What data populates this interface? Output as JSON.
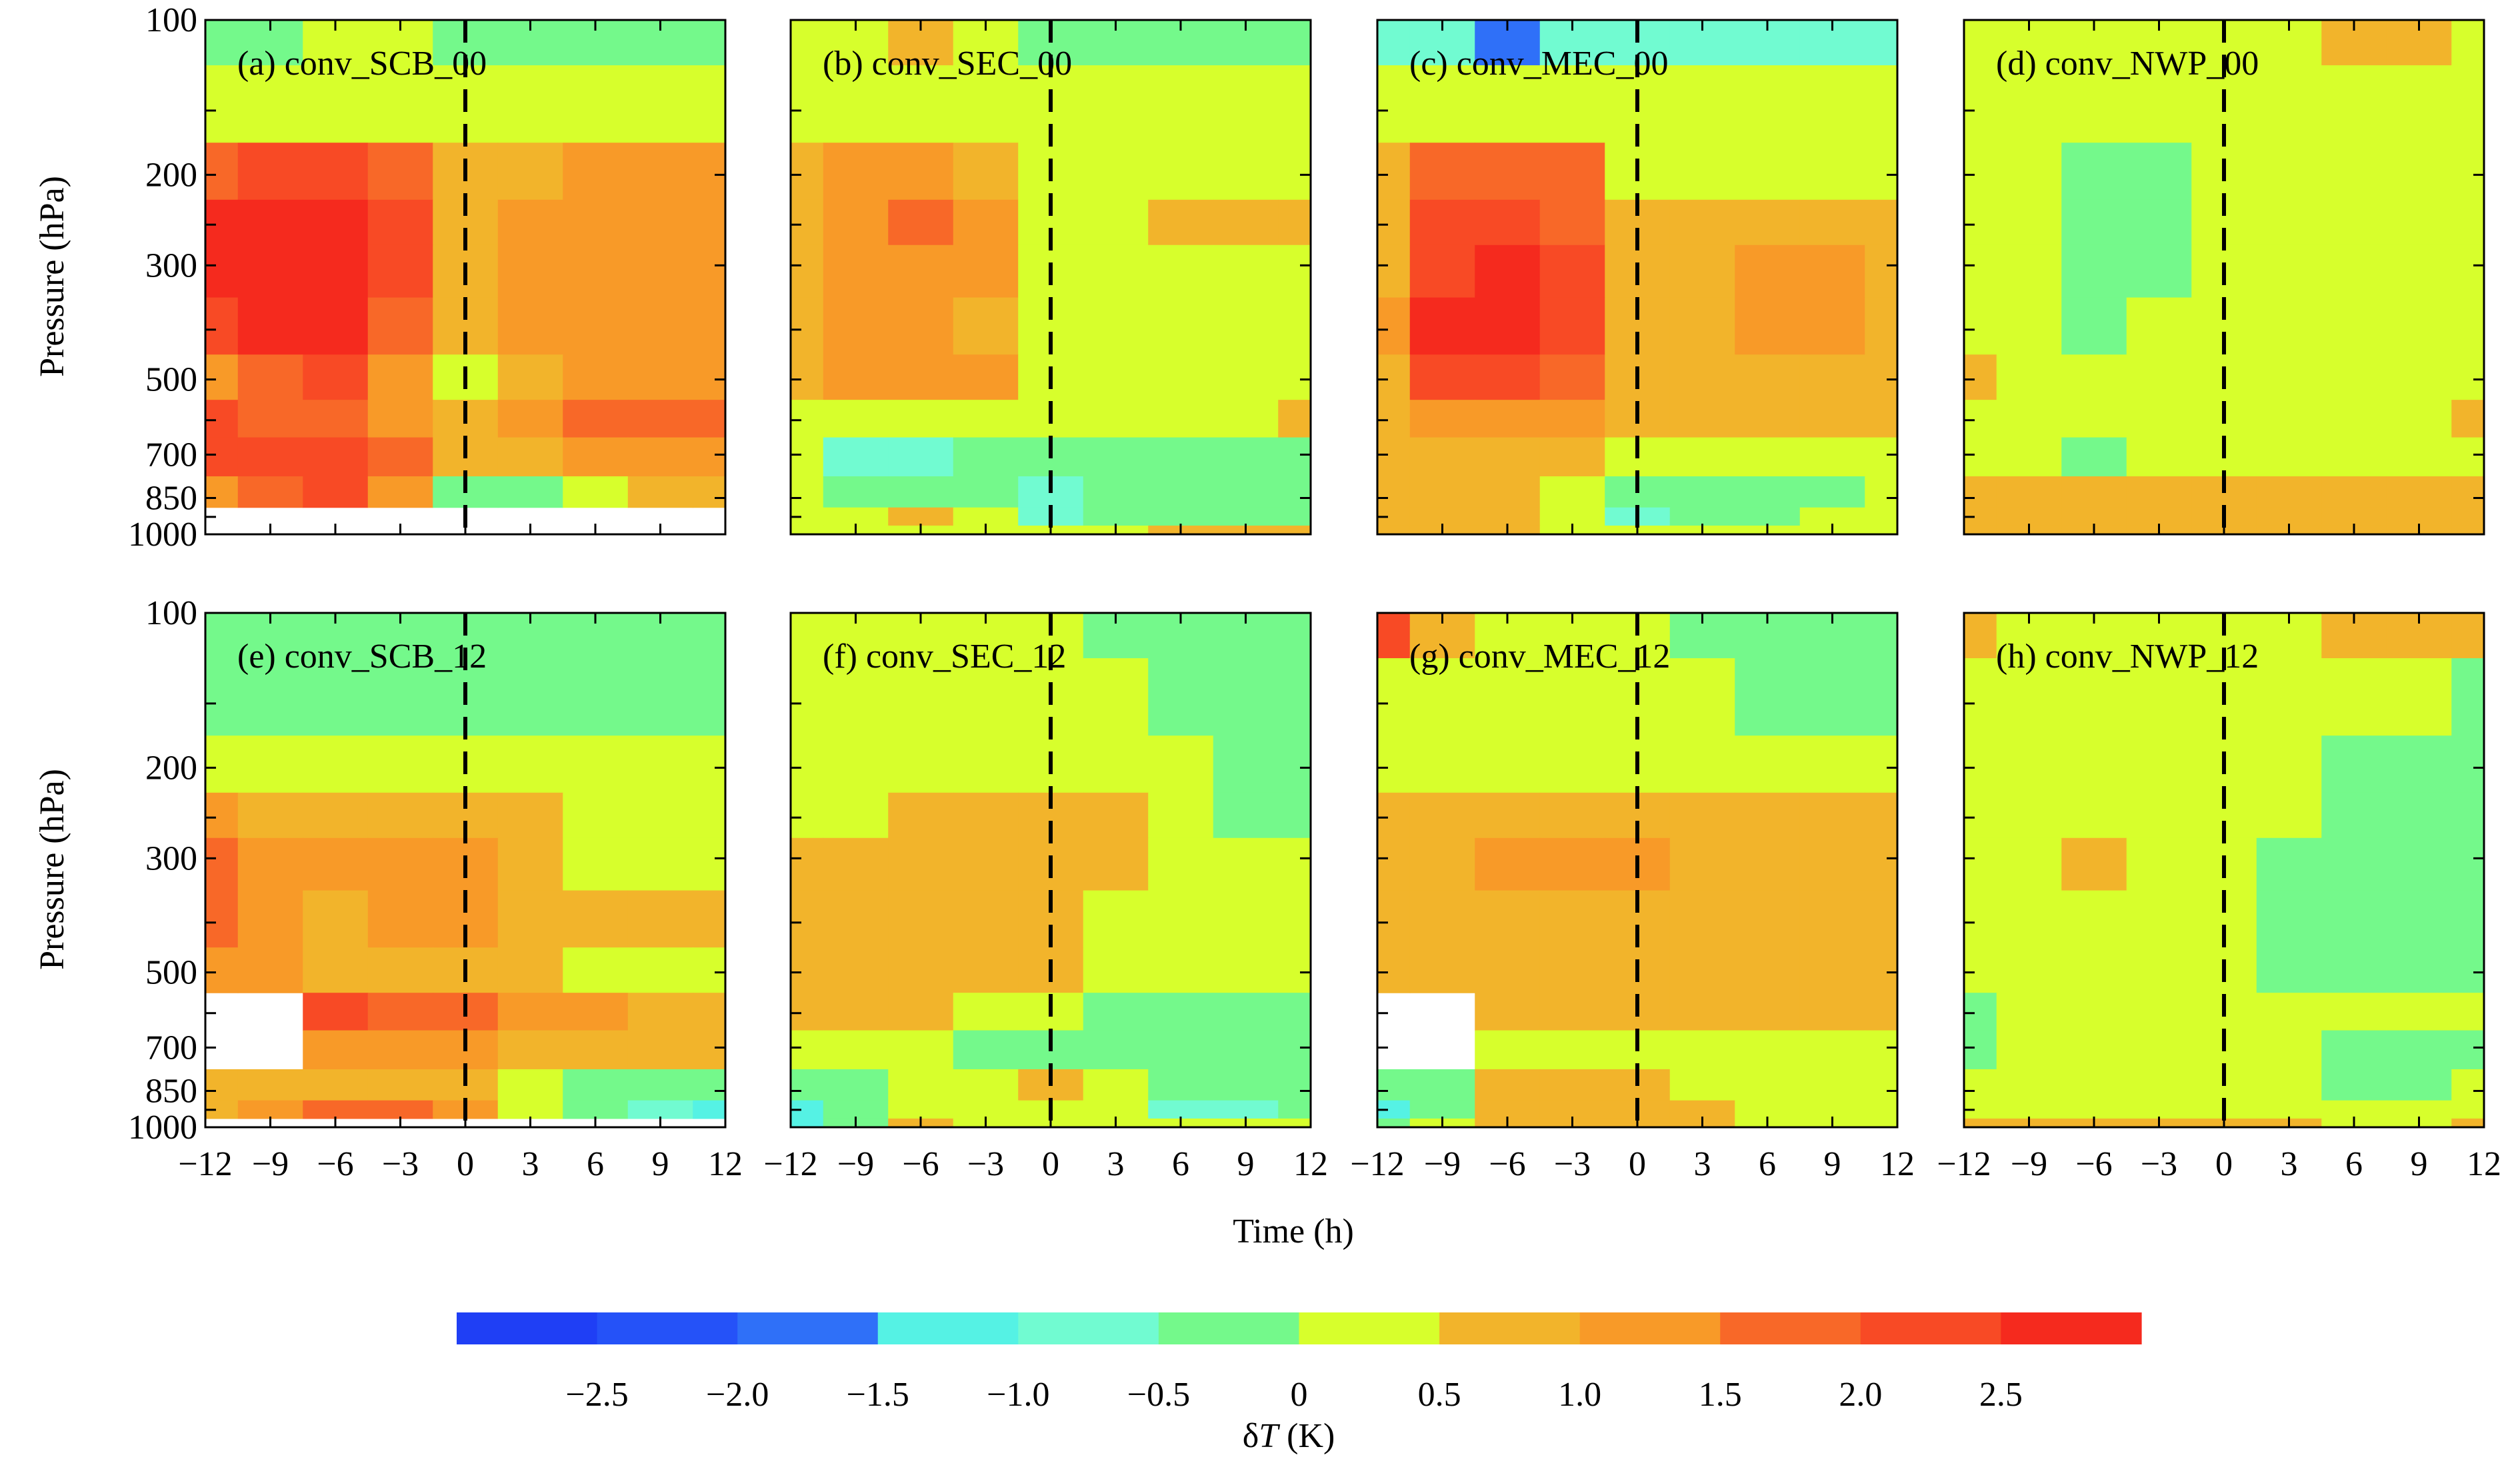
{
  "chart_data": {
    "type": "heatmap",
    "description_free": true,
    "variable_label": "δT (K)",
    "variable_symbol": "δ",
    "variable_italic": "T",
    "variable_unit": " (K)",
    "xlabel": "Time (h)",
    "ylabel": "Pressure (hPa)",
    "x_ticks": [
      -12,
      -9,
      -6,
      -3,
      0,
      3,
      6,
      9,
      12
    ],
    "x_tick_labels": [
      "−12",
      "−9",
      "−6",
      "−3",
      "0",
      "3",
      "6",
      "9",
      "12"
    ],
    "y_label_levels": [
      100,
      200,
      300,
      500,
      700,
      850,
      1000
    ],
    "y_minor_levels": [
      150,
      250,
      400,
      600,
      925
    ],
    "xlim": [
      -12,
      12
    ],
    "ylim_hpa": [
      100,
      1000
    ],
    "vertical_reference_line_x": 0,
    "colorbar": {
      "levels": [
        -3.0,
        -2.5,
        -2.0,
        -1.5,
        -1.0,
        -0.5,
        0,
        0.5,
        1.0,
        1.5,
        2.0,
        2.5,
        3.0
      ],
      "bin_colors": [
        "#1f3ff5",
        "#2552f8",
        "#2f70f8",
        "#55f2e4",
        "#71fbd1",
        "#74f98b",
        "#d7ff2c",
        "#f2b42b",
        "#f89a28",
        "#f86828",
        "#f84a25",
        "#f52a1e"
      ],
      "tick_labels": [
        "−2.5",
        "−2.0",
        "−1.5",
        "−1.0",
        "−0.5",
        "0",
        "0.5",
        "1.0",
        "1.5",
        "2.0",
        "2.5"
      ],
      "tick_values": [
        -2.5,
        -2.0,
        -1.5,
        -1.0,
        -0.5,
        0,
        0.5,
        1.0,
        1.5,
        2.0,
        2.5
      ]
    },
    "grid_times": [
      -12,
      -9,
      -6,
      -3,
      0,
      3,
      6,
      9,
      12
    ],
    "grid_levels": [
      100,
      150,
      200,
      250,
      300,
      400,
      500,
      600,
      700,
      850,
      925,
      1000
    ],
    "panels": [
      {
        "label": "(a) conv_SCB_00",
        "values": [
          [
            -0.4,
            -0.4,
            0.3,
            0.3,
            -0.3,
            -0.4,
            -0.4,
            -0.4,
            -0.4
          ],
          [
            0.3,
            0.3,
            0.3,
            0.3,
            0.3,
            0.3,
            0.3,
            0.3,
            0.3
          ],
          [
            1.6,
            2.2,
            2.4,
            1.6,
            0.6,
            0.9,
            1.0,
            1.0,
            1.0
          ],
          [
            2.5,
            2.6,
            2.6,
            2.2,
            0.8,
            1.1,
            1.2,
            1.2,
            1.2
          ],
          [
            2.5,
            2.7,
            2.7,
            2.2,
            0.8,
            1.1,
            1.3,
            1.3,
            1.3
          ],
          [
            2.0,
            2.5,
            2.6,
            1.8,
            0.7,
            1.0,
            1.3,
            1.3,
            1.2
          ],
          [
            1.3,
            1.6,
            2.0,
            1.2,
            0.3,
            0.8,
            1.1,
            1.2,
            1.1
          ],
          [
            2.0,
            1.5,
            1.5,
            1.1,
            0.6,
            1.2,
            1.6,
            1.7,
            1.7
          ],
          [
            2.0,
            2.1,
            2.2,
            1.5,
            0.5,
            0.9,
            1.1,
            1.1,
            1.1
          ],
          [
            1.2,
            1.8,
            2.0,
            1.0,
            -0.4,
            -0.3,
            0.2,
            0.6,
            0.8
          ],
          [
            null,
            null,
            null,
            null,
            null,
            null,
            null,
            null,
            null
          ],
          [
            null,
            null,
            null,
            null,
            null,
            null,
            null,
            null,
            null
          ]
        ]
      },
      {
        "label": "(b) conv_SEC_00",
        "values": [
          [
            0.3,
            0.3,
            0.6,
            0.3,
            -0.3,
            -0.3,
            -0.3,
            -0.3,
            -0.4
          ],
          [
            0.3,
            0.3,
            0.3,
            0.3,
            0.3,
            0.3,
            0.3,
            0.3,
            0.3
          ],
          [
            0.6,
            1.2,
            1.3,
            0.9,
            0.3,
            0.3,
            0.3,
            0.3,
            0.3
          ],
          [
            0.8,
            1.4,
            1.6,
            1.1,
            0.3,
            0.3,
            0.6,
            0.7,
            0.6
          ],
          [
            0.7,
            1.3,
            1.4,
            1.0,
            0.3,
            0.3,
            0.4,
            0.4,
            0.4
          ],
          [
            0.7,
            1.1,
            1.2,
            0.9,
            0.3,
            0.3,
            0.3,
            0.3,
            0.3
          ],
          [
            0.7,
            1.2,
            1.4,
            1.0,
            0.4,
            0.4,
            0.4,
            0.4,
            0.4
          ],
          [
            0.3,
            0.3,
            0.3,
            0.3,
            0.3,
            0.3,
            0.3,
            0.3,
            0.6
          ],
          [
            0.3,
            -0.6,
            -0.8,
            -0.4,
            -0.3,
            -0.3,
            -0.3,
            -0.3,
            -0.3
          ],
          [
            0.3,
            -0.2,
            -0.3,
            -0.4,
            -0.7,
            -0.4,
            -0.3,
            -0.3,
            -0.3
          ],
          [
            0.3,
            0.3,
            0.5,
            0.3,
            -0.8,
            -0.3,
            -0.3,
            -0.3,
            -0.3
          ],
          [
            0.3,
            0.3,
            0.3,
            0.3,
            0.3,
            0.3,
            0.6,
            0.6,
            0.6
          ]
        ]
      },
      {
        "label": "(c) conv_MEC_00",
        "values": [
          [
            -0.6,
            -0.7,
            -2.0,
            -0.7,
            -0.6,
            -0.6,
            -0.6,
            -0.6,
            -0.6
          ],
          [
            0.3,
            0.3,
            0.3,
            0.3,
            0.3,
            0.3,
            0.3,
            0.3,
            0.3
          ],
          [
            0.6,
            1.5,
            1.7,
            1.5,
            0.3,
            0.3,
            0.3,
            0.3,
            0.3
          ],
          [
            0.8,
            2.0,
            2.3,
            1.9,
            0.7,
            0.7,
            0.9,
            0.9,
            0.8
          ],
          [
            0.9,
            2.4,
            2.6,
            2.2,
            0.8,
            0.9,
            1.1,
            1.1,
            0.9
          ],
          [
            1.0,
            2.5,
            2.7,
            2.3,
            0.8,
            0.9,
            1.1,
            1.0,
            0.9
          ],
          [
            0.9,
            2.2,
            2.4,
            1.9,
            0.7,
            0.8,
            0.8,
            0.8,
            0.8
          ],
          [
            0.8,
            1.1,
            1.2,
            1.0,
            0.8,
            0.8,
            0.8,
            0.8,
            0.8
          ],
          [
            0.8,
            0.8,
            0.8,
            0.7,
            0.3,
            0.3,
            0.3,
            0.3,
            0.3
          ],
          [
            0.7,
            0.7,
            0.7,
            0.3,
            -0.3,
            -0.3,
            -0.3,
            -0.3,
            0.3
          ],
          [
            0.7,
            0.7,
            0.6,
            0.3,
            -0.6,
            -0.4,
            -0.3,
            0.3,
            0.3
          ],
          [
            0.6,
            0.6,
            0.6,
            0.3,
            0.3,
            0.3,
            0.3,
            0.3,
            0.3
          ]
        ]
      },
      {
        "label": "(d) conv_NWP_00",
        "values": [
          [
            0.3,
            0.3,
            0.3,
            0.3,
            0.3,
            0.3,
            0.6,
            0.6,
            0.3
          ],
          [
            0.3,
            0.3,
            0.3,
            0.3,
            0.3,
            0.3,
            0.3,
            0.3,
            0.3
          ],
          [
            0.3,
            0.3,
            -0.3,
            -0.3,
            0.3,
            0.3,
            0.3,
            0.3,
            0.3
          ],
          [
            0.3,
            0.3,
            -0.4,
            -0.3,
            0.3,
            0.3,
            0.3,
            0.3,
            0.3
          ],
          [
            0.3,
            0.3,
            -0.4,
            -0.3,
            0.3,
            0.3,
            0.3,
            0.3,
            0.3
          ],
          [
            0.3,
            0.3,
            -0.3,
            0.3,
            0.3,
            0.3,
            0.3,
            0.3,
            0.3
          ],
          [
            0.6,
            0.3,
            0.3,
            0.3,
            0.3,
            0.3,
            0.3,
            0.3,
            0.3
          ],
          [
            0.3,
            0.3,
            0.3,
            0.3,
            0.3,
            0.3,
            0.3,
            0.3,
            0.6
          ],
          [
            0.3,
            0.3,
            -0.3,
            0.3,
            0.3,
            0.3,
            0.3,
            0.3,
            0.3
          ],
          [
            0.6,
            0.6,
            0.6,
            0.6,
            0.6,
            0.6,
            0.6,
            0.6,
            0.6
          ],
          [
            0.6,
            0.7,
            0.7,
            0.7,
            0.6,
            0.6,
            0.6,
            0.6,
            0.6
          ],
          [
            0.7,
            0.7,
            0.8,
            0.7,
            0.7,
            0.7,
            0.7,
            0.7,
            0.7
          ]
        ]
      },
      {
        "label": "(e) conv_SCB_12",
        "values": [
          [
            -0.3,
            -0.3,
            -0.3,
            -0.3,
            -0.3,
            -0.3,
            -0.3,
            -0.3,
            -0.3
          ],
          [
            -0.3,
            -0.3,
            -0.3,
            -0.3,
            -0.3,
            -0.3,
            -0.3,
            -0.3,
            -0.3
          ],
          [
            0.3,
            0.3,
            0.3,
            0.3,
            0.3,
            0.3,
            0.3,
            0.3,
            0.3
          ],
          [
            1.2,
            0.9,
            0.9,
            0.9,
            0.8,
            0.6,
            0.3,
            0.3,
            0.3
          ],
          [
            1.7,
            1.2,
            1.0,
            1.2,
            1.1,
            0.7,
            0.4,
            0.3,
            0.3
          ],
          [
            1.7,
            1.2,
            0.9,
            1.3,
            1.2,
            0.6,
            0.6,
            0.7,
            0.6
          ],
          [
            1.1,
            1.0,
            0.9,
            0.9,
            0.8,
            0.6,
            0.4,
            0.3,
            0.3
          ],
          [
            null,
            null,
            2.2,
            1.9,
            1.6,
            1.3,
            1.1,
            0.9,
            0.9
          ],
          [
            null,
            null,
            1.4,
            1.2,
            1.0,
            0.7,
            0.6,
            0.6,
            0.6
          ],
          [
            0.9,
            0.8,
            0.8,
            0.7,
            0.6,
            0.3,
            -0.3,
            -0.3,
            -0.4
          ],
          [
            0.8,
            1.3,
            1.5,
            1.5,
            1.3,
            0.3,
            -0.4,
            -0.7,
            -1.3
          ],
          [
            null,
            null,
            null,
            null,
            null,
            null,
            null,
            null,
            null
          ]
        ]
      },
      {
        "label": "(f) conv_SEC_12",
        "values": [
          [
            0.3,
            0.3,
            0.3,
            0.3,
            0.3,
            -0.3,
            -0.3,
            -0.3,
            -0.3
          ],
          [
            0.3,
            0.3,
            0.3,
            0.3,
            0.3,
            0.3,
            -0.3,
            -0.3,
            -0.3
          ],
          [
            0.3,
            0.3,
            0.3,
            0.3,
            0.3,
            0.3,
            0.3,
            -0.3,
            -0.3
          ],
          [
            0.3,
            0.3,
            0.6,
            0.6,
            0.6,
            0.6,
            0.3,
            -0.3,
            -0.3
          ],
          [
            0.6,
            0.6,
            0.6,
            0.6,
            0.6,
            0.6,
            0.3,
            0.3,
            0.3
          ],
          [
            0.6,
            0.6,
            0.6,
            0.6,
            0.6,
            0.3,
            0.3,
            0.3,
            0.3
          ],
          [
            0.6,
            0.6,
            0.6,
            0.6,
            0.6,
            0.3,
            0.3,
            0.3,
            0.3
          ],
          [
            0.6,
            0.6,
            0.6,
            0.3,
            0.3,
            -0.3,
            -0.3,
            -0.3,
            -0.3
          ],
          [
            0.3,
            0.3,
            0.3,
            -0.3,
            -0.3,
            -0.3,
            -0.3,
            -0.3,
            -0.3
          ],
          [
            -0.3,
            -0.3,
            0.3,
            0.3,
            0.6,
            0.3,
            -0.3,
            -0.3,
            -0.3
          ],
          [
            -1.2,
            -0.4,
            0.3,
            0.3,
            0.3,
            0.3,
            -0.6,
            -0.6,
            -0.3
          ],
          [
            -1.4,
            -0.5,
            0.6,
            0.3,
            0.3,
            0.3,
            0.3,
            0.3,
            0.3
          ]
        ]
      },
      {
        "label": "(g) conv_MEC_12",
        "values": [
          [
            2.0,
            0.6,
            0.3,
            0.3,
            0.3,
            -0.3,
            -0.3,
            -0.3,
            -0.3
          ],
          [
            0.3,
            0.3,
            0.3,
            0.3,
            0.3,
            0.3,
            -0.3,
            -0.3,
            -0.3
          ],
          [
            0.3,
            0.3,
            0.3,
            0.3,
            0.3,
            0.3,
            0.3,
            0.3,
            0.3
          ],
          [
            0.6,
            0.6,
            0.8,
            0.9,
            0.8,
            0.6,
            0.6,
            0.6,
            0.6
          ],
          [
            0.6,
            0.6,
            1.0,
            1.1,
            1.0,
            0.6,
            0.6,
            0.6,
            0.6
          ],
          [
            0.6,
            0.6,
            0.9,
            0.9,
            0.8,
            0.6,
            0.6,
            0.6,
            0.6
          ],
          [
            0.6,
            0.6,
            0.6,
            0.6,
            0.6,
            0.6,
            0.6,
            0.6,
            0.6
          ],
          [
            null,
            null,
            0.6,
            0.6,
            0.6,
            0.6,
            0.6,
            0.6,
            0.6
          ],
          [
            null,
            null,
            0.3,
            0.3,
            0.3,
            0.3,
            0.3,
            0.3,
            0.3
          ],
          [
            -0.3,
            -0.3,
            0.6,
            0.6,
            0.6,
            0.3,
            0.3,
            0.3,
            0.3
          ],
          [
            -1.2,
            -0.4,
            0.8,
            0.9,
            0.9,
            0.6,
            0.3,
            0.3,
            0.3
          ],
          [
            -0.3,
            0.3,
            0.8,
            0.8,
            0.8,
            0.6,
            0.3,
            0.3,
            0.3
          ]
        ]
      },
      {
        "label": "(h) conv_NWP_12",
        "values": [
          [
            0.6,
            0.3,
            0.3,
            0.3,
            0.3,
            0.3,
            0.6,
            0.6,
            0.6
          ],
          [
            0.3,
            0.3,
            0.3,
            0.3,
            0.3,
            0.3,
            0.3,
            0.3,
            -0.3
          ],
          [
            0.3,
            0.3,
            0.3,
            0.3,
            0.3,
            0.3,
            -0.3,
            -0.4,
            -0.4
          ],
          [
            0.3,
            0.3,
            0.3,
            0.3,
            0.3,
            0.3,
            -0.3,
            -0.3,
            -0.3
          ],
          [
            0.3,
            0.3,
            0.6,
            0.3,
            0.3,
            -0.3,
            -0.3,
            -0.3,
            -0.3
          ],
          [
            0.3,
            0.3,
            0.3,
            0.3,
            0.3,
            -0.3,
            -0.4,
            -0.4,
            -0.3
          ],
          [
            0.3,
            0.3,
            0.3,
            0.3,
            0.3,
            -0.3,
            -0.3,
            -0.3,
            -0.3
          ],
          [
            -0.3,
            0.3,
            0.3,
            0.3,
            0.3,
            0.3,
            0.3,
            0.3,
            0.3
          ],
          [
            -0.4,
            0.3,
            0.3,
            0.3,
            0.3,
            0.3,
            -0.3,
            -0.3,
            -0.3
          ],
          [
            0.3,
            0.3,
            0.3,
            0.3,
            0.3,
            0.3,
            -0.3,
            -0.3,
            0.3
          ],
          [
            0.3,
            0.3,
            0.3,
            0.3,
            0.3,
            0.3,
            0.3,
            0.3,
            0.3
          ],
          [
            0.6,
            0.6,
            0.6,
            0.6,
            0.6,
            0.6,
            0.3,
            0.3,
            0.6
          ]
        ]
      }
    ]
  }
}
